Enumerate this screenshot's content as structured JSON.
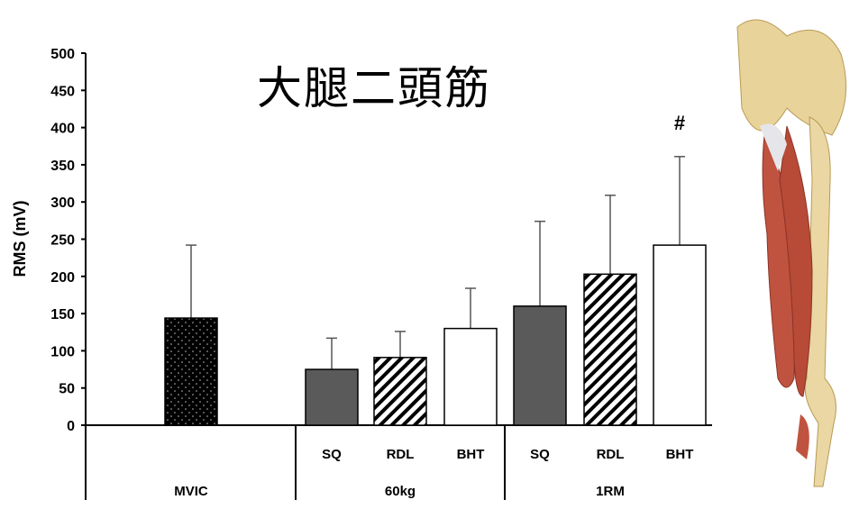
{
  "chart_data": {
    "type": "bar",
    "title": "大腿二頭筋",
    "ylabel": "RMS (mV)",
    "xlabel": "",
    "ylim": [
      0,
      500
    ],
    "yticks": [
      0,
      50,
      100,
      150,
      200,
      250,
      300,
      350,
      400,
      450,
      500
    ],
    "groups": [
      "MVIC",
      "60kg",
      "1RM"
    ],
    "categories": [
      "",
      "SQ",
      "RDL",
      "BHT",
      "SQ",
      "RDL",
      "BHT"
    ],
    "category_groups": [
      "MVIC",
      "60kg",
      "60kg",
      "60kg",
      "1RM",
      "1RM",
      "1RM"
    ],
    "values": [
      144,
      75,
      91,
      130,
      160,
      203,
      242
    ],
    "error_upper": [
      242,
      117,
      126,
      184,
      274,
      309,
      361
    ],
    "fills": [
      "dotted-black",
      "solid-gray",
      "hatched",
      "white",
      "solid-gray",
      "hatched",
      "white"
    ],
    "annotations": [
      {
        "category_index": 6,
        "text": "#"
      }
    ],
    "grid": false
  },
  "colors": {
    "gray_bar": "#5a5a5a",
    "black_bar": "#000000",
    "muscle": "#c0533f",
    "bone": "#e8d39a"
  }
}
